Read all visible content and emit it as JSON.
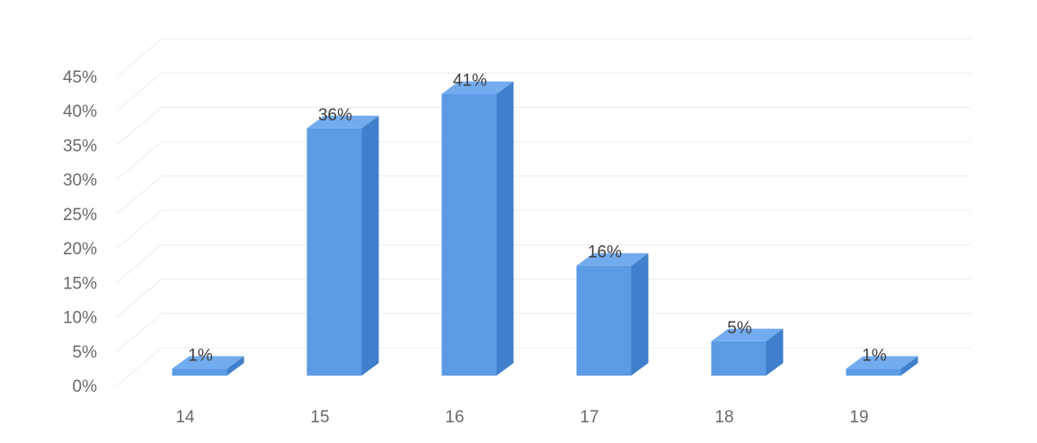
{
  "chart_data": {
    "type": "bar",
    "style": "3d-column",
    "categories": [
      "14",
      "15",
      "16",
      "17",
      "18",
      "19"
    ],
    "values": [
      1,
      36,
      41,
      16,
      5,
      1
    ],
    "data_labels": [
      "1%",
      "36%",
      "41%",
      "16%",
      "5%",
      "1%"
    ],
    "y_ticks": [
      "0%",
      "5%",
      "10%",
      "15%",
      "20%",
      "25%",
      "30%",
      "35%",
      "40%",
      "45%"
    ],
    "ylim": [
      0,
      45
    ],
    "y_tick_step": 5,
    "title": "",
    "xlabel": "",
    "ylabel": "",
    "grid": true,
    "legend": "none",
    "colors": {
      "bar_front": "#5b9be4",
      "bar_side": "#3f7fcb",
      "bar_top": "#73abef",
      "gridline": "#ececec",
      "tick_text": "#6b6b6b",
      "label_text": "#404040"
    }
  }
}
